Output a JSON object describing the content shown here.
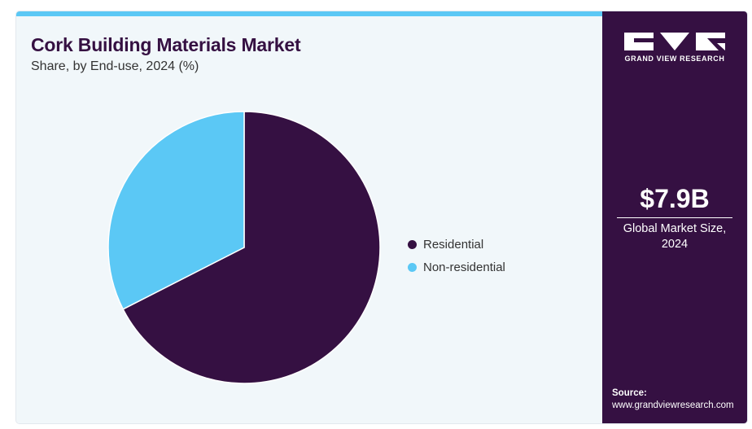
{
  "header": {
    "title": "Cork Building Materials Market",
    "subtitle": "Share, by End-use, 2024 (%)"
  },
  "chart_data": {
    "type": "pie",
    "title": "Cork Building Materials Market",
    "subtitle": "Share, by End-use, 2024 (%)",
    "categories": [
      "Residential",
      "Non-residential"
    ],
    "values": [
      67.5,
      32.5
    ],
    "colors": [
      "#351042",
      "#5bc8f5"
    ],
    "legend_position": "right"
  },
  "sidebar": {
    "brand": "GRAND VIEW RESEARCH",
    "stat_value": "$7.9B",
    "stat_label": "Global Market Size, 2024",
    "source_label": "Source:",
    "source_url": "www.grandviewresearch.com"
  },
  "colors": {
    "accent": "#5bc8f5",
    "brand_dark": "#351042",
    "panel_bg": "#f1f7fa"
  }
}
